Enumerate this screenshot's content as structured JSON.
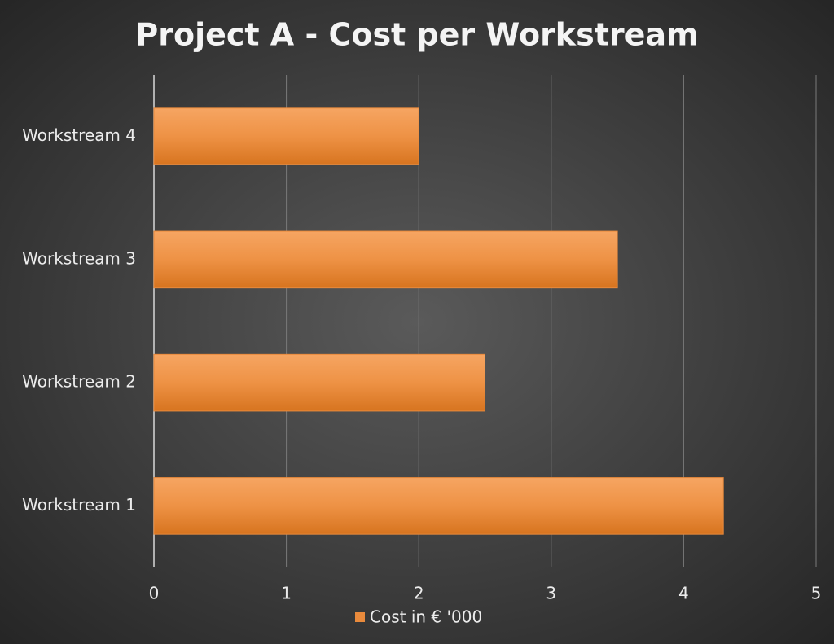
{
  "chart_data": {
    "type": "bar",
    "horizontal": true,
    "title": "Project A - Cost per Workstream",
    "categories": [
      "Workstream 1",
      "Workstream 2",
      "Workstream 3",
      "Workstream 4"
    ],
    "series": [
      {
        "name": "Cost in € '000",
        "color": "#e98a3c",
        "values": [
          4.3,
          2.5,
          3.5,
          2
        ]
      }
    ],
    "xlim": [
      0,
      5
    ],
    "xticks": [
      0,
      1,
      2,
      3,
      4,
      5
    ],
    "grid": true,
    "legend": "bottom"
  }
}
